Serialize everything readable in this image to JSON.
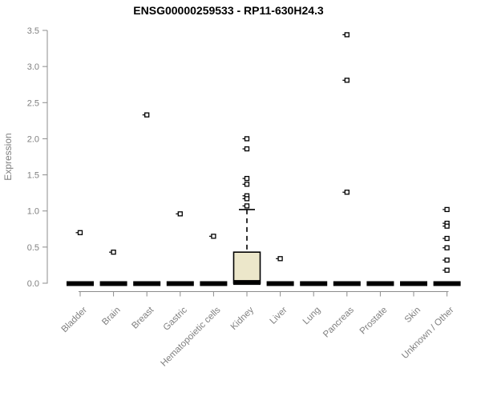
{
  "chart_data": {
    "type": "boxplot",
    "title": "ENSG00000259533 - RP11-630H24.3",
    "ylabel": "Expression",
    "xlabel": "",
    "ylim": [
      0,
      3.5
    ],
    "ytick_labels": [
      "0.0",
      "0.5",
      "1.0",
      "1.5",
      "2.0",
      "2.5",
      "3.0",
      "3.5"
    ],
    "grid": false,
    "legend": false,
    "colors": {
      "box_fill": "#ECE7CA",
      "box_stroke": "#000000",
      "collapsed_box": "#000000",
      "outlier_stroke": "#000000",
      "outlier_fill": "#ffffff",
      "axis": "#8C8C8C",
      "tick_label": "#808080",
      "title": "#000000"
    },
    "categories": [
      {
        "label": "Bladder",
        "median": 0,
        "q1": 0,
        "q3": 0,
        "whisker_low": 0,
        "whisker_high": 0,
        "outliers": [
          0.7
        ]
      },
      {
        "label": "Brain",
        "median": 0,
        "q1": 0,
        "q3": 0,
        "whisker_low": 0,
        "whisker_high": 0,
        "outliers": [
          0.43
        ]
      },
      {
        "label": "Breast",
        "median": 0,
        "q1": 0,
        "q3": 0,
        "whisker_low": 0,
        "whisker_high": 0,
        "outliers": [
          2.33
        ]
      },
      {
        "label": "Gastric",
        "median": 0,
        "q1": 0,
        "q3": 0,
        "whisker_low": 0,
        "whisker_high": 0,
        "outliers": [
          0.96
        ]
      },
      {
        "label": "Hematopoietic cells",
        "median": 0,
        "q1": 0,
        "q3": 0,
        "whisker_low": 0,
        "whisker_high": 0,
        "outliers": [
          0.65
        ]
      },
      {
        "label": "Kidney",
        "median": 0.01,
        "q1": 0,
        "q3": 0.43,
        "whisker_low": 0,
        "whisker_high": 1.02,
        "outliers": [
          2.0,
          1.86,
          1.45,
          1.37,
          1.21,
          1.17,
          1.07
        ]
      },
      {
        "label": "Liver",
        "median": 0,
        "q1": 0,
        "q3": 0,
        "whisker_low": 0,
        "whisker_high": 0,
        "outliers": [
          0.34
        ]
      },
      {
        "label": "Lung",
        "median": 0,
        "q1": 0,
        "q3": 0,
        "whisker_low": 0,
        "whisker_high": 0,
        "outliers": []
      },
      {
        "label": "Pancreas",
        "median": 0,
        "q1": 0,
        "q3": 0,
        "whisker_low": 0,
        "whisker_high": 0,
        "outliers": [
          3.44,
          2.81,
          1.26
        ]
      },
      {
        "label": "Prostate",
        "median": 0,
        "q1": 0,
        "q3": 0,
        "whisker_low": 0,
        "whisker_high": 0,
        "outliers": []
      },
      {
        "label": "Skin",
        "median": 0,
        "q1": 0,
        "q3": 0,
        "whisker_low": 0,
        "whisker_high": 0,
        "outliers": []
      },
      {
        "label": "Unknown / Other",
        "median": 0,
        "q1": 0,
        "q3": 0,
        "whisker_low": 0,
        "whisker_high": 0,
        "outliers": [
          1.02,
          0.83,
          0.79,
          0.62,
          0.49,
          0.32,
          0.18
        ]
      }
    ]
  }
}
